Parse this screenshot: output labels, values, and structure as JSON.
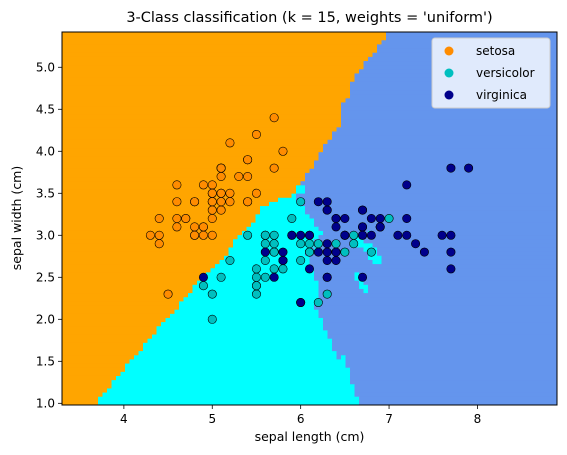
{
  "chart_data": {
    "type": "scatter",
    "title": "3-Class classification (k = 15, weights = 'uniform')",
    "xlabel": "sepal length (cm)",
    "ylabel": "sepal width (cm)",
    "xlim": [
      3.3,
      8.9
    ],
    "ylim": [
      0.98,
      5.42
    ],
    "x_ticks": [
      "4",
      "5",
      "6",
      "7",
      "8"
    ],
    "y_ticks": [
      "1.0",
      "1.5",
      "2.0",
      "2.5",
      "3.0",
      "3.5",
      "4.0",
      "4.5",
      "5.0"
    ],
    "legend_position": "top-right",
    "grid": false,
    "regions": [
      {
        "class": "setosa",
        "color": "#ffa500"
      },
      {
        "class": "versicolor",
        "color": "#00ffff"
      },
      {
        "class": "virginica",
        "color": "#6495ed"
      }
    ],
    "series": [
      {
        "name": "setosa",
        "color": "#ff8c00",
        "points": [
          [
            5.1,
            3.5
          ],
          [
            4.9,
            3.0
          ],
          [
            4.7,
            3.2
          ],
          [
            4.6,
            3.1
          ],
          [
            5.0,
            3.6
          ],
          [
            5.4,
            3.9
          ],
          [
            4.6,
            3.4
          ],
          [
            5.0,
            3.4
          ],
          [
            4.4,
            2.9
          ],
          [
            4.9,
            3.1
          ],
          [
            5.4,
            3.7
          ],
          [
            4.8,
            3.4
          ],
          [
            4.8,
            3.0
          ],
          [
            4.3,
            3.0
          ],
          [
            5.8,
            4.0
          ],
          [
            5.7,
            4.4
          ],
          [
            5.4,
            3.9
          ],
          [
            5.1,
            3.5
          ],
          [
            5.7,
            3.8
          ],
          [
            5.1,
            3.8
          ],
          [
            5.4,
            3.4
          ],
          [
            5.1,
            3.7
          ],
          [
            4.6,
            3.6
          ],
          [
            5.1,
            3.3
          ],
          [
            4.8,
            3.4
          ],
          [
            5.0,
            3.0
          ],
          [
            5.0,
            3.4
          ],
          [
            5.2,
            3.5
          ],
          [
            5.2,
            3.4
          ],
          [
            4.7,
            3.2
          ],
          [
            4.8,
            3.1
          ],
          [
            5.4,
            3.4
          ],
          [
            5.2,
            4.1
          ],
          [
            5.5,
            4.2
          ],
          [
            4.9,
            3.1
          ],
          [
            5.0,
            3.2
          ],
          [
            5.5,
            3.5
          ],
          [
            4.9,
            3.6
          ],
          [
            4.4,
            3.0
          ],
          [
            5.1,
            3.4
          ],
          [
            5.0,
            3.5
          ],
          [
            4.5,
            2.3
          ],
          [
            4.4,
            3.2
          ],
          [
            5.0,
            3.5
          ],
          [
            5.1,
            3.8
          ],
          [
            4.8,
            3.0
          ],
          [
            5.1,
            3.8
          ],
          [
            4.6,
            3.2
          ],
          [
            5.3,
            3.7
          ],
          [
            5.0,
            3.3
          ]
        ]
      },
      {
        "name": "versicolor",
        "color": "#00bfbf",
        "points": [
          [
            7.0,
            3.2
          ],
          [
            6.4,
            3.2
          ],
          [
            6.9,
            3.1
          ],
          [
            5.5,
            2.3
          ],
          [
            6.5,
            2.8
          ],
          [
            5.7,
            2.8
          ],
          [
            6.3,
            3.3
          ],
          [
            4.9,
            2.4
          ],
          [
            6.6,
            2.9
          ],
          [
            5.2,
            2.7
          ],
          [
            5.0,
            2.0
          ],
          [
            5.9,
            3.0
          ],
          [
            6.0,
            2.2
          ],
          [
            6.1,
            2.9
          ],
          [
            5.6,
            2.9
          ],
          [
            6.7,
            3.1
          ],
          [
            5.6,
            3.0
          ],
          [
            5.8,
            2.7
          ],
          [
            6.2,
            2.2
          ],
          [
            5.6,
            2.5
          ],
          [
            5.9,
            3.2
          ],
          [
            6.1,
            2.8
          ],
          [
            6.3,
            2.5
          ],
          [
            6.1,
            2.8
          ],
          [
            6.4,
            2.9
          ],
          [
            6.6,
            3.0
          ],
          [
            6.8,
            2.8
          ],
          [
            6.7,
            3.0
          ],
          [
            6.0,
            2.9
          ],
          [
            5.7,
            2.6
          ],
          [
            5.5,
            2.4
          ],
          [
            5.5,
            2.4
          ],
          [
            5.8,
            2.7
          ],
          [
            6.0,
            2.7
          ],
          [
            5.4,
            3.0
          ],
          [
            6.0,
            3.4
          ],
          [
            6.7,
            3.1
          ],
          [
            6.3,
            2.3
          ],
          [
            5.6,
            3.0
          ],
          [
            5.5,
            2.5
          ],
          [
            5.5,
            2.6
          ],
          [
            6.1,
            3.0
          ],
          [
            5.8,
            2.6
          ],
          [
            5.0,
            2.3
          ],
          [
            5.6,
            2.7
          ],
          [
            5.7,
            3.0
          ],
          [
            5.7,
            2.9
          ],
          [
            6.2,
            2.9
          ],
          [
            5.1,
            2.5
          ],
          [
            5.7,
            2.8
          ]
        ]
      },
      {
        "name": "virginica",
        "color": "#00008b",
        "points": [
          [
            6.3,
            3.3
          ],
          [
            5.8,
            2.7
          ],
          [
            7.1,
            3.0
          ],
          [
            6.3,
            2.9
          ],
          [
            6.5,
            3.0
          ],
          [
            7.6,
            3.0
          ],
          [
            4.9,
            2.5
          ],
          [
            7.3,
            2.9
          ],
          [
            6.7,
            2.5
          ],
          [
            7.2,
            3.6
          ],
          [
            6.5,
            3.2
          ],
          [
            6.4,
            2.7
          ],
          [
            6.8,
            3.0
          ],
          [
            5.7,
            2.5
          ],
          [
            5.8,
            2.8
          ],
          [
            6.4,
            3.2
          ],
          [
            6.5,
            3.0
          ],
          [
            7.7,
            3.8
          ],
          [
            7.7,
            2.6
          ],
          [
            6.0,
            2.2
          ],
          [
            6.9,
            3.2
          ],
          [
            5.6,
            2.8
          ],
          [
            7.7,
            2.8
          ],
          [
            6.3,
            2.7
          ],
          [
            6.7,
            3.3
          ],
          [
            7.2,
            3.2
          ],
          [
            6.2,
            2.8
          ],
          [
            6.1,
            3.0
          ],
          [
            6.4,
            2.8
          ],
          [
            7.2,
            3.0
          ],
          [
            7.4,
            2.8
          ],
          [
            7.9,
            3.8
          ],
          [
            6.4,
            2.8
          ],
          [
            6.3,
            2.8
          ],
          [
            6.1,
            2.6
          ],
          [
            7.7,
            3.0
          ],
          [
            6.3,
            3.4
          ],
          [
            6.4,
            3.1
          ],
          [
            6.0,
            3.0
          ],
          [
            6.9,
            3.1
          ],
          [
            6.7,
            3.1
          ],
          [
            6.9,
            3.1
          ],
          [
            5.8,
            2.7
          ],
          [
            6.8,
            3.2
          ],
          [
            6.7,
            3.3
          ],
          [
            6.7,
            3.0
          ],
          [
            6.3,
            2.5
          ],
          [
            6.5,
            3.0
          ],
          [
            6.2,
            3.4
          ],
          [
            5.9,
            3.0
          ]
        ]
      }
    ]
  }
}
